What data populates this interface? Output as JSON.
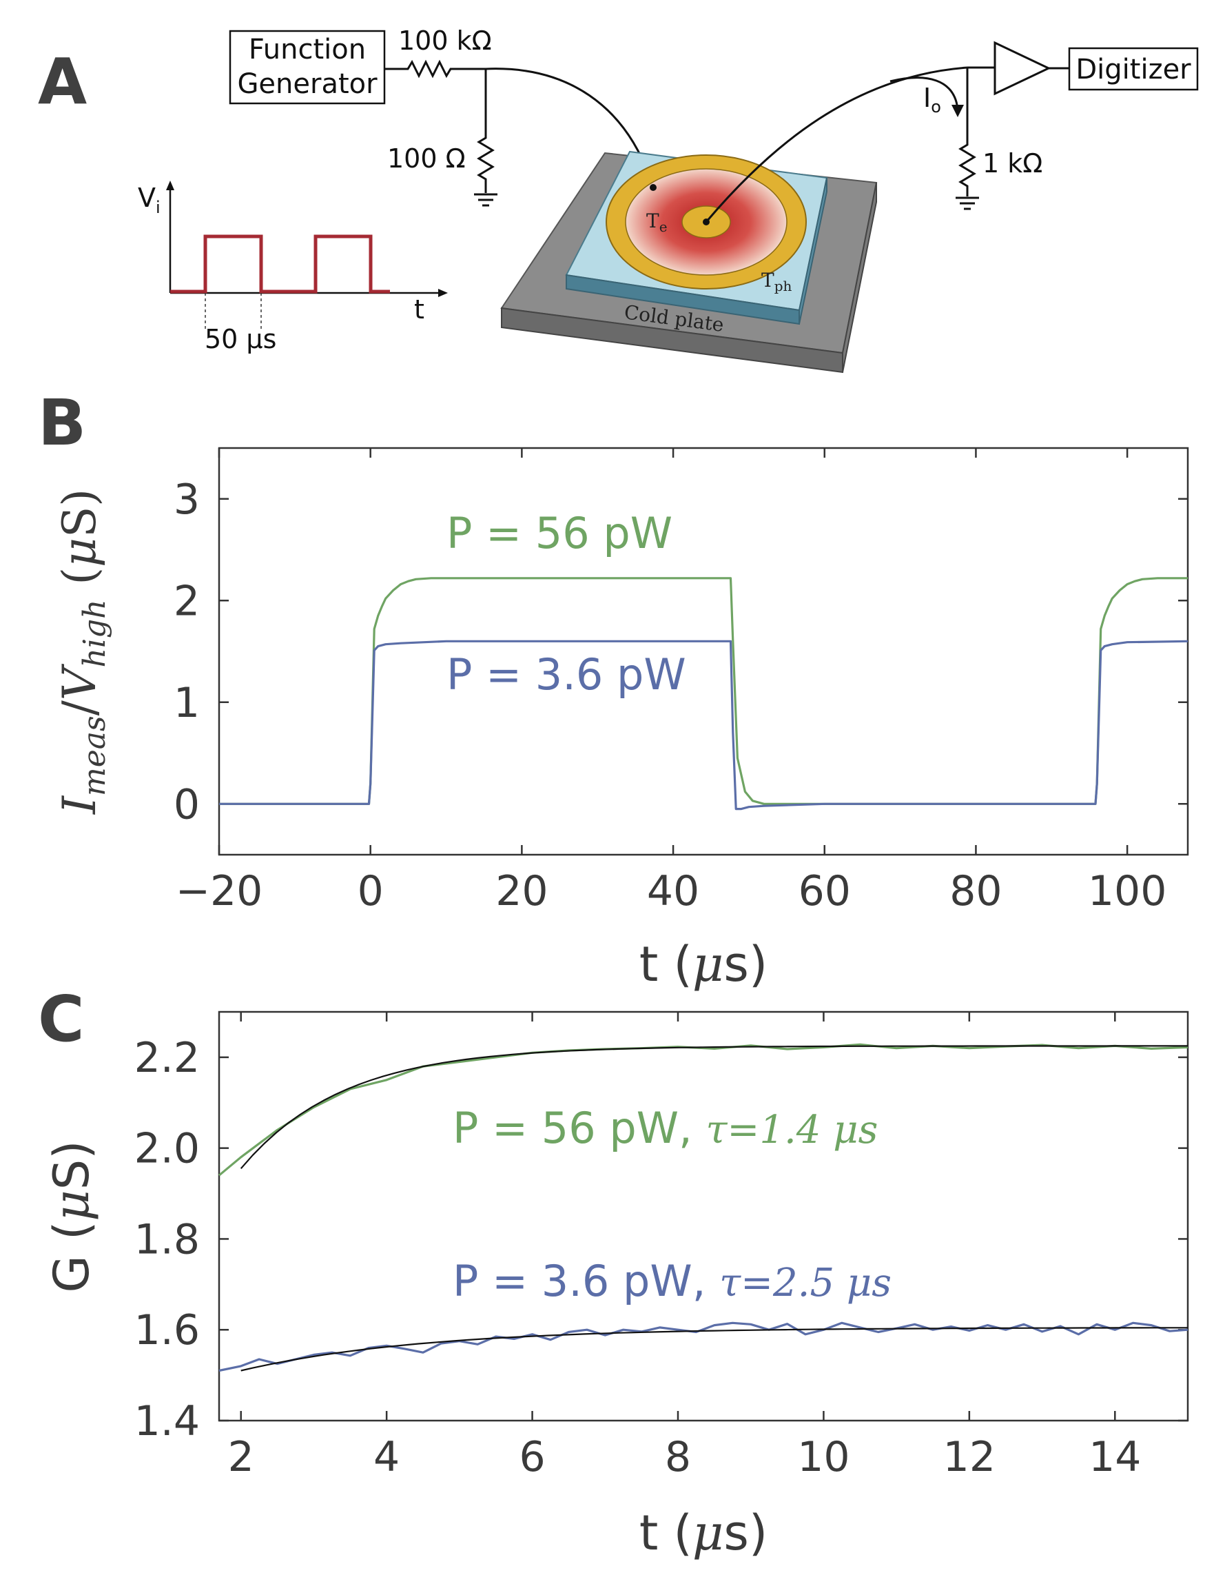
{
  "panels": {
    "a": "A",
    "b": "B",
    "c": "C"
  },
  "schematic": {
    "function_generator": [
      "Function",
      "Generator"
    ],
    "digitizer": "Digitizer",
    "r_series": "100 kΩ",
    "r_shunt": "100 Ω",
    "r_load": "1 kΩ",
    "current_label": "I",
    "current_sub": "o",
    "te_label": "T",
    "te_sub": "e",
    "tph_label": "T",
    "tph_sub": "ph",
    "cold_plate": "Cold plate",
    "pulse_ylabel": "V",
    "pulse_ysub": "i",
    "pulse_xlabel": "t",
    "pulse_width": "50 μs"
  },
  "colors": {
    "green": "#6fa463",
    "blue": "#5b6ea8",
    "fit": "#111111",
    "pulse": "#a52a33",
    "axis": "#333333"
  },
  "chart_data": [
    {
      "type": "line",
      "panel": "B",
      "xlabel": "t (μs)",
      "xlabel_parts": [
        "t (",
        "μ",
        "s)"
      ],
      "ylabel": "I_meas/V_high (μS)",
      "xlim": [
        -20,
        108
      ],
      "ylim": [
        -0.5,
        3.5
      ],
      "xticks": [
        -20,
        0,
        20,
        40,
        60,
        80,
        100
      ],
      "xtick_labels": [
        "−20",
        "0",
        "20",
        "40",
        "60",
        "80",
        "100"
      ],
      "yticks": [
        0,
        1,
        2,
        3
      ],
      "ytick_labels": [
        "0",
        "1",
        "2",
        "3"
      ],
      "series": [
        {
          "name": "P = 56 pW",
          "color": "#6fa463",
          "x": [
            -20,
            -0.2,
            0,
            0.5,
            1,
            1.5,
            2,
            3,
            4,
            5,
            6,
            8,
            10,
            20,
            30,
            40,
            47.6,
            47.9,
            48.5,
            49.5,
            50.5,
            52,
            60,
            80,
            95.8,
            96,
            96.5,
            97,
            97.5,
            98,
            99,
            100,
            101,
            102,
            104,
            108
          ],
          "y": [
            0,
            0,
            0.2,
            1.72,
            1.85,
            1.94,
            2.02,
            2.1,
            2.16,
            2.19,
            2.21,
            2.22,
            2.22,
            2.22,
            2.22,
            2.22,
            2.22,
            1.6,
            0.45,
            0.12,
            0.03,
            0,
            0,
            0,
            0,
            0.2,
            1.72,
            1.85,
            1.94,
            2.02,
            2.1,
            2.16,
            2.19,
            2.21,
            2.22,
            2.22
          ]
        },
        {
          "name": "P = 3.6 pW",
          "color": "#5b6ea8",
          "x": [
            -20,
            -0.2,
            0,
            0.5,
            1,
            2,
            4,
            10,
            20,
            30,
            40,
            47.6,
            47.9,
            48.3,
            49,
            50,
            52,
            60,
            80,
            95.8,
            96,
            96.5,
            97,
            98,
            100,
            108
          ],
          "y": [
            0,
            0,
            0.2,
            1.51,
            1.55,
            1.57,
            1.58,
            1.6,
            1.6,
            1.6,
            1.6,
            1.6,
            0.7,
            -0.05,
            -0.05,
            -0.03,
            -0.02,
            0,
            0,
            0,
            0.2,
            1.51,
            1.55,
            1.57,
            1.59,
            1.6
          ]
        }
      ],
      "annotations": [
        {
          "text": "P = 56 pW",
          "color": "#6fa463"
        },
        {
          "text": "P = 3.6 pW",
          "color": "#5b6ea8"
        }
      ]
    },
    {
      "type": "line",
      "panel": "C",
      "xlabel": "t (μs)",
      "xlabel_parts": [
        "t (",
        "μ",
        "s)"
      ],
      "ylabel": "G (μS)",
      "ylabel_parts": [
        "G (",
        "μ",
        "S)"
      ],
      "xlim": [
        1.7,
        15
      ],
      "ylim": [
        1.4,
        2.3
      ],
      "xticks": [
        2,
        4,
        6,
        8,
        10,
        12,
        14
      ],
      "xtick_labels": [
        "2",
        "4",
        "6",
        "8",
        "10",
        "12",
        "14"
      ],
      "yticks": [
        1.4,
        1.6,
        1.8,
        2.0,
        2.2
      ],
      "ytick_labels": [
        "1.4",
        "1.6",
        "1.8",
        "2.0",
        "2.2"
      ],
      "series": [
        {
          "name": "P = 56 pW",
          "color": "#6fa463",
          "x": [
            1.7,
            2,
            2.5,
            3,
            3.5,
            4,
            4.5,
            5,
            5.5,
            6,
            6.5,
            7,
            7.5,
            8,
            8.5,
            9,
            9.5,
            10,
            10.5,
            11,
            11.5,
            12,
            12.5,
            13,
            13.5,
            14,
            14.5,
            15
          ],
          "y": [
            1.94,
            1.98,
            2.04,
            2.09,
            2.13,
            2.15,
            2.18,
            2.19,
            2.2,
            2.21,
            2.215,
            2.218,
            2.22,
            2.223,
            2.219,
            2.226,
            2.218,
            2.222,
            2.228,
            2.22,
            2.225,
            2.22,
            2.224,
            2.227,
            2.22,
            2.225,
            2.219,
            2.222
          ]
        },
        {
          "name": "P = 3.6 pW",
          "color": "#5b6ea8",
          "x": [
            1.7,
            2,
            2.25,
            2.5,
            2.75,
            3,
            3.25,
            3.5,
            3.75,
            4,
            4.25,
            4.5,
            4.75,
            5,
            5.25,
            5.5,
            5.75,
            6,
            6.25,
            6.5,
            6.75,
            7,
            7.25,
            7.5,
            7.75,
            8,
            8.25,
            8.5,
            8.75,
            9,
            9.25,
            9.5,
            9.75,
            10,
            10.25,
            10.5,
            10.75,
            11,
            11.25,
            11.5,
            11.75,
            12,
            12.25,
            12.5,
            12.75,
            13,
            13.25,
            13.5,
            13.75,
            14,
            14.25,
            14.5,
            14.75,
            15
          ],
          "y": [
            1.51,
            1.52,
            1.535,
            1.525,
            1.535,
            1.545,
            1.55,
            1.543,
            1.56,
            1.565,
            1.558,
            1.55,
            1.57,
            1.575,
            1.568,
            1.585,
            1.58,
            1.59,
            1.578,
            1.595,
            1.6,
            1.588,
            1.6,
            1.596,
            1.605,
            1.6,
            1.595,
            1.61,
            1.615,
            1.612,
            1.6,
            1.613,
            1.59,
            1.6,
            1.615,
            1.605,
            1.595,
            1.603,
            1.612,
            1.6,
            1.607,
            1.598,
            1.61,
            1.6,
            1.612,
            1.596,
            1.608,
            1.59,
            1.612,
            1.6,
            1.615,
            1.61,
            1.597,
            1.6
          ]
        },
        {
          "name": "",
          "color": "#111111",
          "amplitude": 0.27,
          "asymptote": 2.225,
          "tau": 1.4,
          "t0": 2.0,
          "x_range": [
            2.0,
            15
          ]
        },
        {
          "name": "",
          "color": "#111111",
          "amplitude": 0.095,
          "asymptote": 1.605,
          "tau": 2.5,
          "t0": 2.0,
          "x_range": [
            2.0,
            15
          ]
        }
      ],
      "annotations": [
        {
          "text": "P = 56 pW, ",
          "math": "τ=1.4 μs",
          "color": "#6fa463"
        },
        {
          "text": "P = 3.6 pW, ",
          "math": "τ=2.5 μs",
          "color": "#5b6ea8"
        }
      ]
    }
  ]
}
